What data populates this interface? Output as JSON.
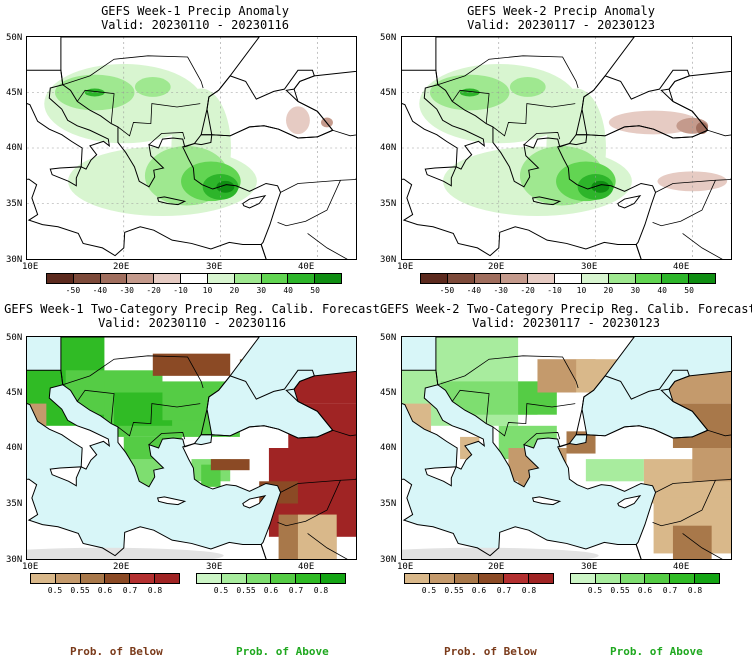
{
  "panels": [
    {
      "title_line1": "GEFS Week-1 Precip Anomaly",
      "title_line2": "Valid: 20230110 - 20230116",
      "kind": "anomaly",
      "week": 1,
      "lat_labels": [
        "50N",
        "45N",
        "40N",
        "35N",
        "30N"
      ],
      "lon_labels": [
        "10E",
        "20E",
        "30E",
        "40E"
      ]
    },
    {
      "title_line1": "GEFS Week-2 Precip Anomaly",
      "title_line2": "Valid: 20230117 - 20230123",
      "kind": "anomaly",
      "week": 2,
      "lat_labels": [
        "50N",
        "45N",
        "40N",
        "35N",
        "30N"
      ],
      "lon_labels": [
        "10E",
        "20E",
        "30E",
        "40E"
      ]
    },
    {
      "title_line1": "GEFS Week-1 Two-Category Precip Reg. Calib. Forecast",
      "title_line2": "Valid: 20230110 - 20230116",
      "kind": "prob",
      "week": 1,
      "lat_labels": [
        "50N",
        "45N",
        "40N",
        "35N",
        "30N"
      ],
      "lon_labels": [
        "10E",
        "20E",
        "30E",
        "40E"
      ]
    },
    {
      "title_line1": "GEFS Week-2 Two-Category Precip Reg. Calib. Forecast",
      "title_line2": "Valid: 20230117 - 20230123",
      "kind": "prob",
      "week": 2,
      "lat_labels": [
        "50N",
        "45N",
        "40N",
        "35N",
        "30N"
      ],
      "lon_labels": [
        "10E",
        "20E",
        "30E",
        "40E"
      ]
    }
  ],
  "anomaly_colorbar": {
    "labels": [
      "-50",
      "-40",
      "-30",
      "-20",
      "-10",
      "10",
      "20",
      "30",
      "40",
      "50"
    ],
    "colors": [
      "#5c2a1e",
      "#7d4a3a",
      "#a06e5e",
      "#c49a8c",
      "#e6cbc3",
      "#ffffff",
      "#d8f5d0",
      "#9fe890",
      "#62d552",
      "#2db52a",
      "#0f8e12"
    ]
  },
  "below_colorbar": {
    "labels": [
      "0.5",
      "0.55",
      "0.6",
      "0.7",
      "0.8"
    ],
    "colors": [
      "#d9b88a",
      "#c49a6c",
      "#a8784a",
      "#8b4a25",
      "#b33030",
      "#a02424"
    ]
  },
  "above_colorbar": {
    "labels": [
      "0.5",
      "0.55",
      "0.6",
      "0.7",
      "0.8"
    ],
    "colors": [
      "#ccf5c6",
      "#a8ec9e",
      "#7ede70",
      "#55cc45",
      "#30bb25",
      "#14a514"
    ]
  },
  "legend": {
    "below_label": "Prob. of Below",
    "above_label": "Prob. of Above"
  },
  "colors": {
    "sea": "#d8f6f8",
    "land": "#ffffff",
    "no_data": "#e2e2e2"
  }
}
